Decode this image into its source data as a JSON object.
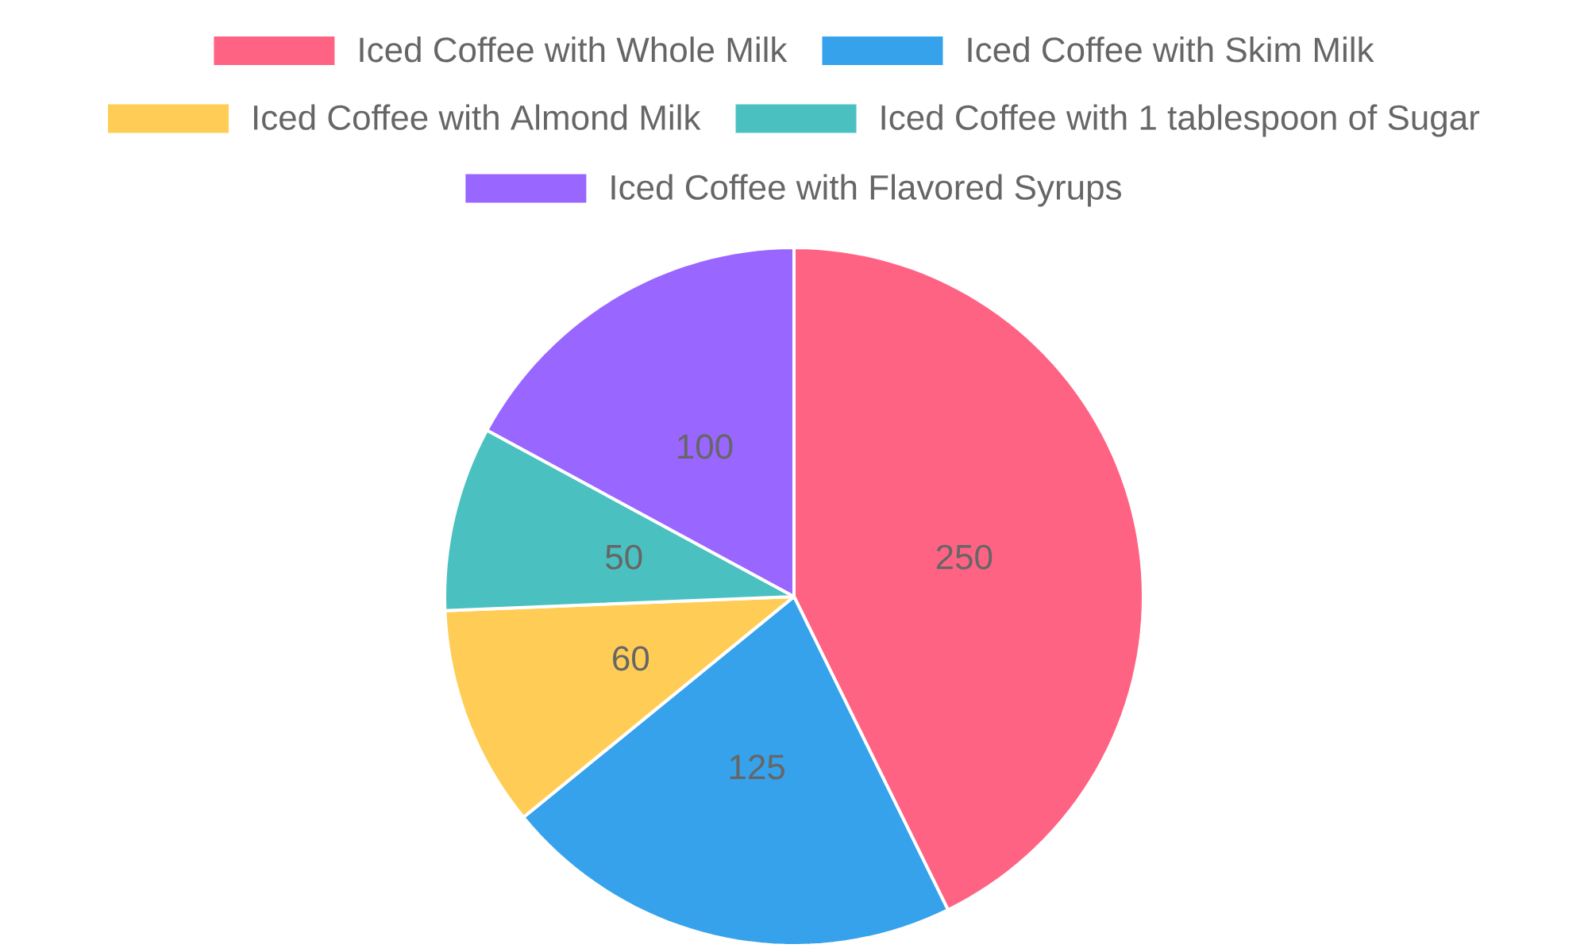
{
  "chart_data": {
    "type": "pie",
    "categories": [
      "Iced Coffee with Whole Milk",
      "Iced Coffee with Skim Milk",
      "Iced Coffee with Almond Milk",
      "Iced Coffee with 1 tablespoon of Sugar",
      "Iced Coffee with Flavored Syrups"
    ],
    "values": [
      250,
      125,
      60,
      50,
      100
    ],
    "colors": [
      "#ff6384",
      "#36a2eb",
      "#ffcd56",
      "#4bc0c0",
      "#9966ff"
    ],
    "data_labels": true,
    "legend": "top"
  }
}
